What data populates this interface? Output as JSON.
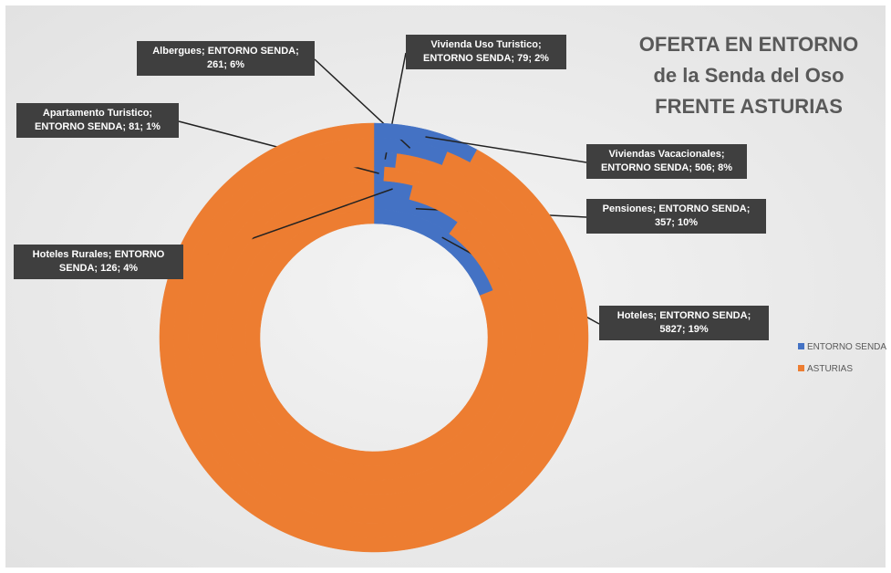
{
  "chart_data": {
    "type": "doughnut",
    "title": "OFERTA EN ENTORNO de la Senda del Oso FRENTE ASTURIAS",
    "categories": [
      "Hoteles",
      "Pensiones",
      "Hoteles Rurales",
      "Apartamento Turistico",
      "Vivienda Uso Turistico",
      "Albergues",
      "Viviendas Vacacionales"
    ],
    "series": [
      {
        "name": "ENTORNO SENDA",
        "color": "#4472c4",
        "values": [
          19,
          10,
          4,
          1,
          2,
          6,
          8
        ],
        "value_labels": [
          "Hoteles; ENTORNO SENDA; 5827; 19%",
          "Pensiones; ENTORNO SENDA; 357; 10%",
          "Hoteles Rurales; ENTORNO SENDA; 126; 4%",
          "Apartamento Turistico; ENTORNO SENDA; 81; 1%",
          "Vivienda Uso Turistico; ENTORNO SENDA; 79; 2%",
          "Albergues; ENTORNO SENDA; 261; 6%",
          "Viviendas Vacacionales; ENTORNO SENDA; 506; 8%"
        ]
      },
      {
        "name": "ASTURIAS",
        "color": "#ed7d31",
        "values": [
          81,
          90,
          96,
          99,
          98,
          94,
          92
        ]
      }
    ],
    "legend": "right"
  }
}
